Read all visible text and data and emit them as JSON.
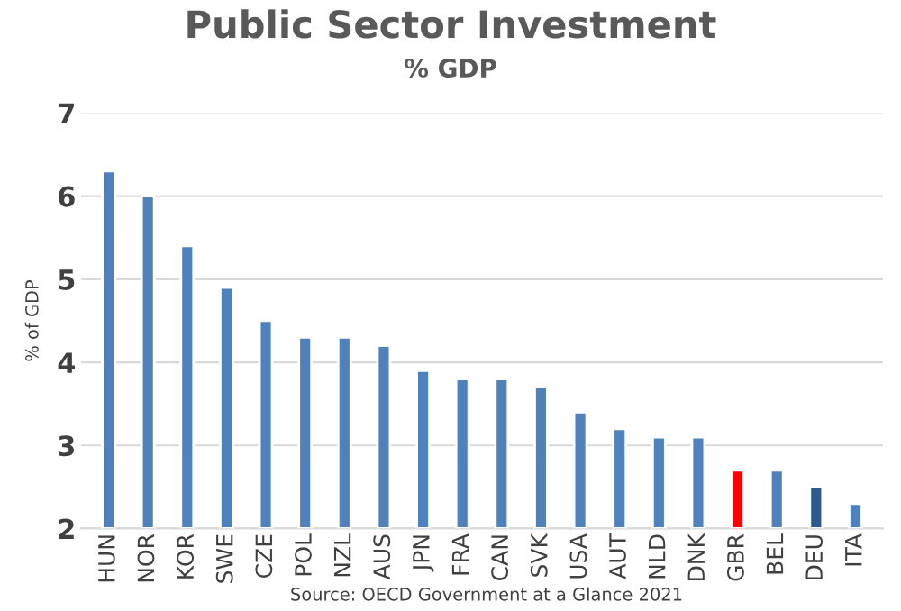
{
  "chart_data": {
    "type": "bar",
    "title": "Public Sector Investment",
    "subtitle": "% GDP",
    "ylabel": "% of GDP",
    "categories": [
      "HUN",
      "NOR",
      "KOR",
      "SWE",
      "CZE",
      "POL",
      "NZL",
      "AUS",
      "JPN",
      "FRA",
      "CAN",
      "SVK",
      "USA",
      "AUT",
      "NLD",
      "DNK",
      "GBR",
      "BEL",
      "DEU",
      "ITA"
    ],
    "values": [
      6.3,
      6.0,
      5.4,
      4.9,
      4.5,
      4.3,
      4.3,
      4.2,
      3.9,
      3.8,
      3.8,
      3.7,
      3.4,
      3.2,
      3.1,
      3.1,
      2.7,
      2.7,
      2.5,
      2.3
    ],
    "colors": [
      "#4f81bd",
      "#4f81bd",
      "#4f81bd",
      "#4f81bd",
      "#4f81bd",
      "#4f81bd",
      "#4f81bd",
      "#4f81bd",
      "#4f81bd",
      "#4f81bd",
      "#4f81bd",
      "#4f81bd",
      "#4f81bd",
      "#4f81bd",
      "#4f81bd",
      "#4f81bd",
      "#ff0000",
      "#4f81bd",
      "#2e5a8c",
      "#4f81bd"
    ],
    "ylim": [
      2,
      7
    ],
    "yticks": [
      2,
      3,
      4,
      5,
      6,
      7
    ],
    "grid": "y",
    "annotations": [
      "Source: OECD Government at a Glance 2021"
    ]
  }
}
